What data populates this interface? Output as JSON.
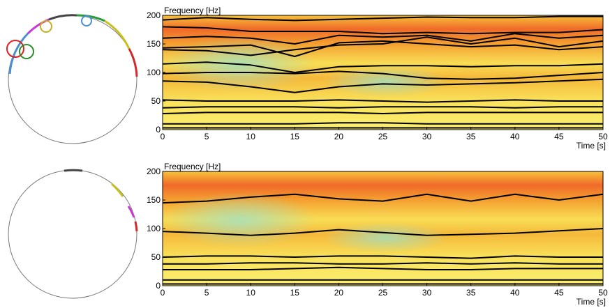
{
  "chart_data": [
    {
      "type": "line",
      "y_label": "Frequency [Hz]",
      "x_label": "Time [s]",
      "x": [
        0,
        5,
        10,
        15,
        20,
        25,
        30,
        35,
        40,
        45,
        50
      ],
      "xlim": [
        0,
        50
      ],
      "xticks": [
        0,
        5,
        10,
        15,
        20,
        25,
        30,
        35,
        40,
        45,
        50
      ],
      "ylim": [
        0,
        200
      ],
      "yticks": [
        0,
        50,
        100,
        150,
        200
      ],
      "series": [
        {
          "color": "#000000",
          "values": [
            192,
            196,
            193,
            191,
            193,
            195,
            197,
            196,
            196,
            198,
            198
          ]
        },
        {
          "color": "#000000",
          "values": [
            180,
            178,
            172,
            172,
            172,
            168,
            170,
            168,
            170,
            170,
            175
          ]
        },
        {
          "color": "#000000",
          "values": [
            160,
            163,
            160,
            150,
            165,
            162,
            165,
            155,
            168,
            160,
            165
          ]
        },
        {
          "color": "#000000",
          "values": [
            143,
            145,
            148,
            128,
            152,
            155,
            150,
            145,
            148,
            140,
            145
          ]
        },
        {
          "color": "#000000",
          "values": [
            140,
            138,
            130,
            140,
            148,
            150,
            162,
            150,
            160,
            145,
            155
          ]
        },
        {
          "color": "#000000",
          "values": [
            115,
            118,
            113,
            100,
            110,
            112,
            112,
            110,
            112,
            112,
            115
          ]
        },
        {
          "color": "#000000",
          "values": [
            98,
            100,
            100,
            98,
            102,
            98,
            90,
            88,
            90,
            95,
            100
          ]
        },
        {
          "color": "#000000",
          "values": [
            85,
            83,
            75,
            65,
            75,
            80,
            78,
            80,
            82,
            85,
            88
          ]
        },
        {
          "color": "#000000",
          "values": [
            52,
            50,
            50,
            50,
            52,
            50,
            48,
            50,
            52,
            50,
            50
          ]
        },
        {
          "color": "#000000",
          "values": [
            38,
            40,
            40,
            40,
            38,
            40,
            40,
            40,
            38,
            40,
            40
          ]
        },
        {
          "color": "#000000",
          "values": [
            28,
            30,
            30,
            30,
            30,
            28,
            30,
            30,
            30,
            30,
            30
          ]
        },
        {
          "color": "#000000",
          "values": [
            10,
            10,
            10,
            10,
            12,
            12,
            10,
            10,
            10,
            10,
            10
          ]
        },
        {
          "color": "#000000",
          "values": [
            3,
            3,
            3,
            3,
            3,
            3,
            3,
            3,
            3,
            3,
            3
          ]
        }
      ]
    },
    {
      "type": "line",
      "y_label": "Frequency [Hz]",
      "x_label": "Time [s]",
      "x": [
        0,
        5,
        10,
        15,
        20,
        25,
        30,
        35,
        40,
        45,
        50
      ],
      "xlim": [
        0,
        50
      ],
      "xticks": [
        0,
        5,
        10,
        15,
        20,
        25,
        30,
        35,
        40,
        45,
        50
      ],
      "ylim": [
        0,
        200
      ],
      "yticks": [
        0,
        50,
        100,
        150,
        200
      ],
      "series": [
        {
          "color": "#000000",
          "values": [
            145,
            148,
            155,
            160,
            152,
            148,
            160,
            148,
            160,
            150,
            160
          ]
        },
        {
          "color": "#000000",
          "values": [
            95,
            92,
            88,
            92,
            98,
            93,
            88,
            90,
            92,
            96,
            100
          ]
        },
        {
          "color": "#000000",
          "values": [
            50,
            52,
            52,
            50,
            52,
            52,
            50,
            48,
            52,
            50,
            50
          ]
        },
        {
          "color": "#000000",
          "values": [
            38,
            38,
            40,
            40,
            38,
            38,
            40,
            38,
            40,
            38,
            38
          ]
        },
        {
          "color": "#000000",
          "values": [
            28,
            28,
            28,
            30,
            32,
            30,
            28,
            28,
            30,
            30,
            30
          ]
        },
        {
          "color": "#000000",
          "values": [
            10,
            10,
            10,
            10,
            10,
            10,
            10,
            10,
            10,
            10,
            10
          ]
        },
        {
          "color": "#000000",
          "values": [
            3,
            3,
            3,
            3,
            3,
            3,
            3,
            3,
            3,
            3,
            3
          ]
        }
      ]
    }
  ]
}
